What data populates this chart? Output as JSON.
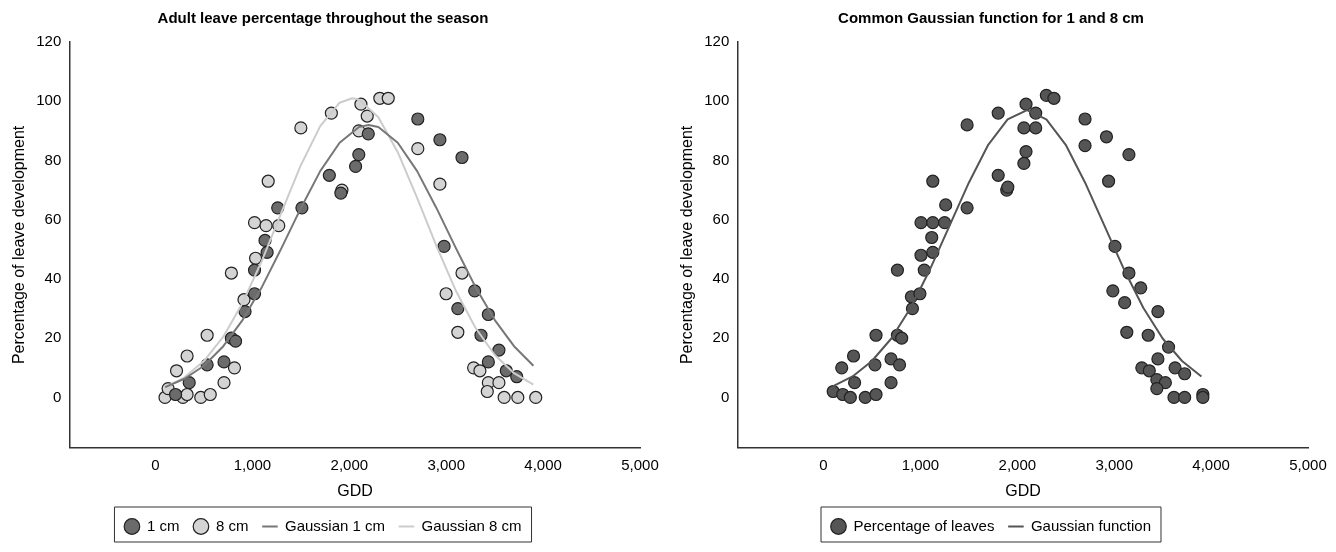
{
  "chart_data": [
    {
      "type": "scatter",
      "title": "Adult leave percentage throughout the season",
      "xlabel": "GDD",
      "ylabel": "Percentage of leave development",
      "legend": "bottom",
      "xlim": [
        -880,
        5000
      ],
      "ylim": [
        -17,
        120
      ],
      "xticks": [
        0,
        {
          "value": 1000,
          "label": "1,000"
        },
        {
          "value": 2000,
          "label": "2,000"
        },
        {
          "value": 3000,
          "label": "3,000"
        },
        {
          "value": 4000,
          "label": "4,000"
        },
        {
          "value": 5000,
          "label": "5,000"
        }
      ],
      "yticks": [
        0,
        20,
        40,
        60,
        80,
        100,
        120
      ],
      "series": [
        {
          "name": "1 cm",
          "type": "scatter",
          "marker": "circle",
          "color": "#6b6b6b",
          "x": [
            207,
            348,
            533,
            707,
            783,
            826,
            924,
            1022,
            1022,
            1152,
            1130,
            1261,
            1511,
            1794,
            1913,
            2065,
            2098,
            2196,
            2707,
            2935,
            3163,
            2978,
            3294,
            3120,
            3435,
            3359,
            3544,
            3435,
            3620,
            3728
          ],
          "values": [
            1,
            5,
            11,
            12,
            20,
            19,
            29,
            35,
            43,
            49,
            53,
            64,
            64,
            75,
            69,
            78,
            82,
            89,
            94,
            87,
            81,
            51,
            36,
            30,
            28,
            21,
            16,
            12,
            9,
            7
          ]
        },
        {
          "name": "8 cm",
          "type": "scatter",
          "marker": "circle",
          "color": "#d4d4d4",
          "x": [
            98,
            130,
            217,
            283,
            326,
            326,
            467,
            565,
            533,
            707,
            815,
            783,
            913,
            1033,
            1022,
            1141,
            1272,
            1163,
            1500,
            1815,
            1924,
            2098,
            2120,
            2185,
            2315,
            2402,
            2707,
            2935,
            3163,
            2999,
            3120,
            3283,
            3348,
            3435,
            3544,
            3424,
            3598,
            3739,
            3924
          ],
          "values": [
            0,
            3,
            9,
            0,
            14,
            1,
            0,
            1,
            21,
            5,
            10,
            42,
            33,
            47,
            59,
            58,
            58,
            73,
            91,
            96,
            70,
            90,
            99,
            95,
            101,
            101,
            84,
            72,
            42,
            35,
            22,
            10,
            9,
            5,
            5,
            2,
            0,
            0,
            0
          ]
        },
        {
          "name": "Gaussian 1 cm",
          "type": "line",
          "marker": "none",
          "color": "#777777",
          "x": [
            100,
            300,
            500,
            700,
            900,
            1100,
            1300,
            1500,
            1700,
            1900,
            2100,
            2200,
            2300,
            2500,
            2700,
            2900,
            3100,
            3300,
            3500,
            3700,
            3900
          ],
          "values": [
            3.5,
            6.3,
            10.7,
            17.3,
            26.2,
            37.4,
            50.4,
            63.9,
            76.4,
            86.0,
            91.3,
            92,
            91.3,
            86.0,
            76.4,
            63.9,
            50.4,
            37.4,
            26.2,
            17.3,
            10.7
          ]
        },
        {
          "name": "Gaussian 8 cm",
          "type": "line",
          "marker": "none",
          "color": "#cccccc",
          "x": [
            100,
            300,
            500,
            700,
            900,
            1100,
            1300,
            1500,
            1700,
            1900,
            2030,
            2100,
            2300,
            2500,
            2700,
            2900,
            3100,
            3300,
            3500,
            3700,
            3900
          ],
          "values": [
            3.5,
            6.8,
            12.3,
            20.5,
            32.0,
            46.3,
            62.5,
            78.4,
            91.6,
            99.5,
            101,
            100.6,
            94.6,
            82.8,
            67.4,
            51.1,
            36.0,
            23.6,
            14.4,
            8.2,
            4.3
          ]
        }
      ]
    },
    {
      "type": "scatter",
      "title": "Common Gaussian function for 1 and 8 cm",
      "xlabel": "GDD",
      "ylabel": "Percentage of leave development",
      "legend": "bottom",
      "xlim": [
        -880,
        5000
      ],
      "ylim": [
        -17,
        120
      ],
      "xticks": [
        0,
        {
          "value": 1000,
          "label": "1,000"
        },
        {
          "value": 2000,
          "label": "2,000"
        },
        {
          "value": 3000,
          "label": "3,000"
        },
        {
          "value": 4000,
          "label": "4,000"
        },
        {
          "value": 5000,
          "label": "5,000"
        }
      ],
      "yticks": [
        0,
        20,
        40,
        60,
        80,
        100,
        120
      ],
      "series": [
        {
          "name": "Percentage of leaves",
          "type": "scatter",
          "marker": "circle",
          "color": "#555555",
          "x": [
            100,
            199,
            277,
            188,
            310,
            321,
            431,
            542,
            531,
            542,
            697,
            697,
            785,
            763,
            807,
            763,
            918,
            907,
            995,
            1040,
            1006,
            1128,
            1117,
            1006,
            1128,
            1250,
            1261,
            1128,
            1482,
            1482,
            1803,
            1803,
            1891,
            1902,
            2068,
            2090,
            2068,
            2090,
            2190,
            2190,
            2300,
            2378,
            2699,
            2699,
            2920,
            3152,
            2942,
            3008,
            3152,
            3274,
            2986,
            3108,
            3451,
            3130,
            3351,
            3561,
            3451,
            3285,
            3362,
            3628,
            3727,
            3440,
            3528,
            3440,
            3617,
            3727,
            3915,
            3915
          ],
          "values": [
            2,
            1,
            0,
            10,
            14,
            5,
            0,
            1,
            11,
            21,
            5,
            13,
            11,
            21,
            20,
            43,
            30,
            34,
            35,
            43,
            48,
            49,
            54,
            59,
            59,
            59,
            65,
            73,
            64,
            92,
            96,
            75,
            70,
            71,
            79,
            83,
            91,
            99,
            96,
            91,
            102,
            101,
            94,
            85,
            88,
            82,
            73,
            51,
            42,
            37,
            36,
            32,
            29,
            22,
            21,
            17,
            13,
            10,
            9,
            10,
            8,
            6,
            5,
            3,
            0,
            0,
            1,
            0
          ]
        },
        {
          "name": "Gaussian function",
          "type": "line",
          "marker": "none",
          "color": "#555555",
          "x": [
            100,
            300,
            500,
            700,
            900,
            1100,
            1300,
            1500,
            1700,
            1900,
            2100,
            2300,
            2500,
            2700,
            2900,
            3100,
            3300,
            3500,
            3700,
            3900
          ],
          "values": [
            3.8,
            7.1,
            12.3,
            19.9,
            30.3,
            43.3,
            57.9,
            72.5,
            85.3,
            93.9,
            97,
            93.9,
            85.3,
            72.5,
            57.9,
            43.3,
            30.3,
            19.9,
            12.3,
            7.1
          ]
        }
      ]
    }
  ]
}
